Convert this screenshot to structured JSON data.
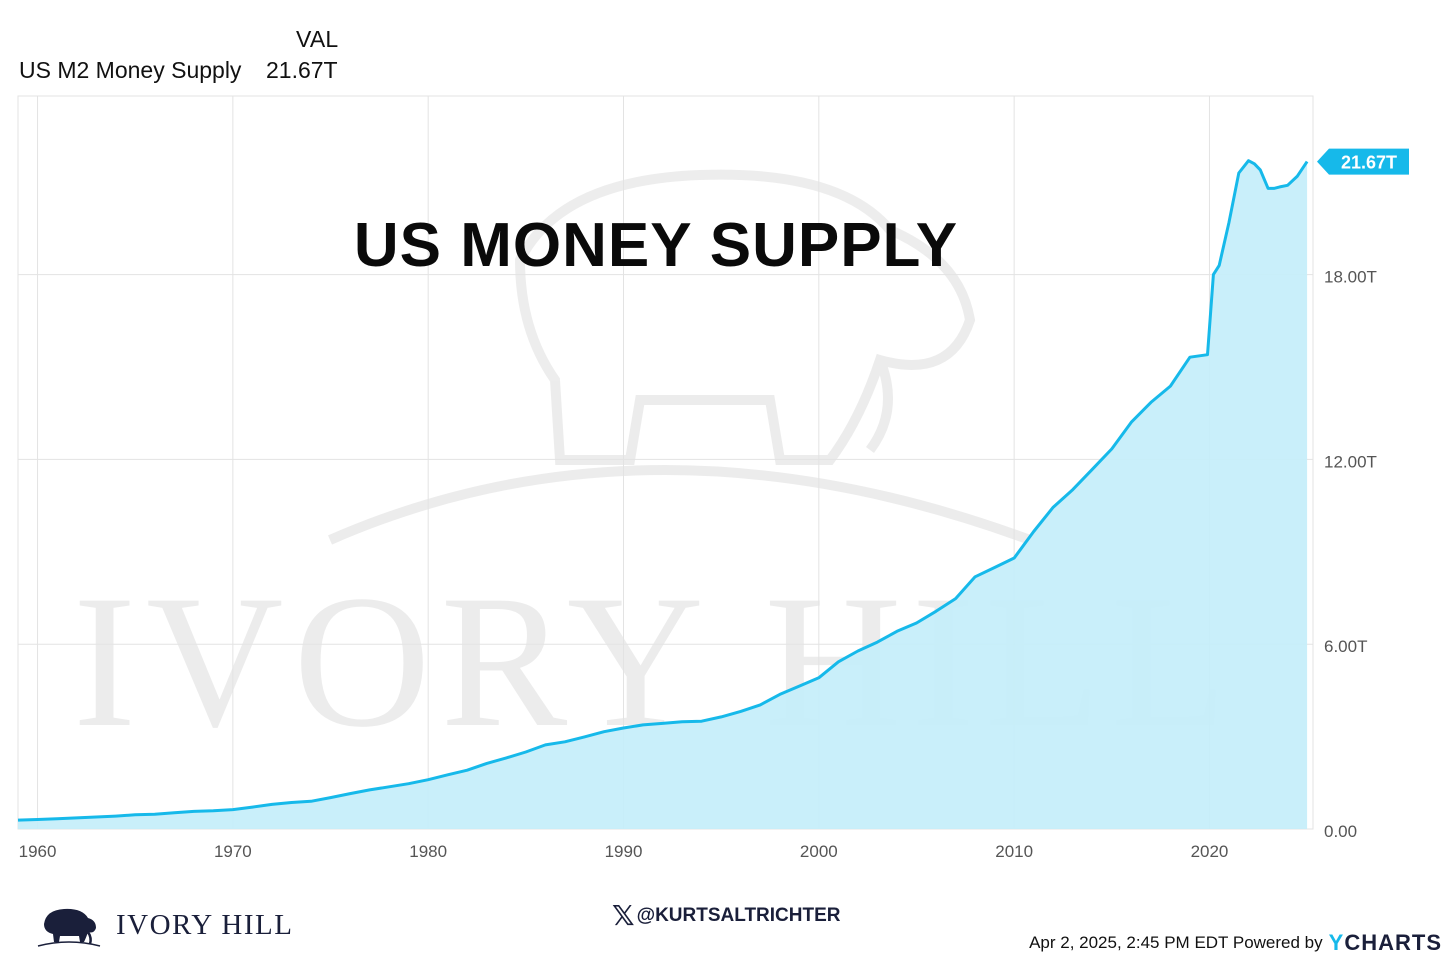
{
  "legend": {
    "column_header": "VAL",
    "series_name": "US M2 Money Supply",
    "series_value": "21.67T"
  },
  "chart_data": {
    "type": "area",
    "title": "US MONEY SUPPLY",
    "xlabel": "",
    "ylabel": "",
    "x_ticks": [
      "1960",
      "1970",
      "1980",
      "1990",
      "2000",
      "2010",
      "2020"
    ],
    "y_ticks": [
      "0.00",
      "6.00T",
      "12.00T",
      "18.00T"
    ],
    "xlim": [
      1959,
      2025.3
    ],
    "ylim": [
      0,
      23.8
    ],
    "grid": true,
    "colors": {
      "line": "#16b9ea",
      "fill": "#c4eefa",
      "grid": "#e3e3e3"
    },
    "last_value_label": "21.67T",
    "series": [
      {
        "name": "US M2 Money Supply",
        "x": [
          1959,
          1960,
          1961,
          1962,
          1963,
          1964,
          1965,
          1966,
          1967,
          1968,
          1969,
          1970,
          1971,
          1972,
          1973,
          1974,
          1975,
          1976,
          1977,
          1978,
          1979,
          1980,
          1981,
          1982,
          1983,
          1984,
          1985,
          1986,
          1987,
          1988,
          1989,
          1990,
          1991,
          1992,
          1993,
          1994,
          1995,
          1996,
          1997,
          1998,
          1999,
          2000,
          2001,
          2002,
          2003,
          2004,
          2005,
          2006,
          2007,
          2008,
          2009,
          2010,
          2011,
          2012,
          2013,
          2014,
          2015,
          2016,
          2017,
          2018,
          2019,
          2019.9,
          2020.2,
          2020.5,
          2021,
          2021.5,
          2022,
          2022.3,
          2022.6,
          2023,
          2023.3,
          2023.6,
          2024,
          2024.5,
          2025
        ],
        "values": [
          0.29,
          0.31,
          0.33,
          0.36,
          0.39,
          0.42,
          0.46,
          0.48,
          0.53,
          0.57,
          0.59,
          0.63,
          0.71,
          0.8,
          0.86,
          0.9,
          1.02,
          1.15,
          1.27,
          1.37,
          1.47,
          1.6,
          1.76,
          1.91,
          2.13,
          2.31,
          2.5,
          2.73,
          2.83,
          2.99,
          3.16,
          3.28,
          3.38,
          3.43,
          3.48,
          3.5,
          3.64,
          3.82,
          4.03,
          4.37,
          4.64,
          4.91,
          5.43,
          5.78,
          6.07,
          6.42,
          6.69,
          7.07,
          7.48,
          8.19,
          8.49,
          8.8,
          9.66,
          10.45,
          11.02,
          11.68,
          12.34,
          13.21,
          13.85,
          14.38,
          15.32,
          15.4,
          18.0,
          18.3,
          19.7,
          21.3,
          21.7,
          21.6,
          21.4,
          20.8,
          20.8,
          20.85,
          20.9,
          21.2,
          21.67
        ]
      }
    ]
  },
  "watermark": {
    "text": "IVORY HILL",
    "icon": "elephant-icon"
  },
  "social": {
    "x_icon": "x-logo-icon",
    "handle": "@KURTSALTRICHTER"
  },
  "brand": {
    "name": "IVORY HILL",
    "icon": "elephant-icon"
  },
  "footer": {
    "timestamp": "Apr 2, 2025, 2:45 PM EDT Powered by",
    "logo_y": "Y",
    "logo_rest": "CHARTS"
  }
}
